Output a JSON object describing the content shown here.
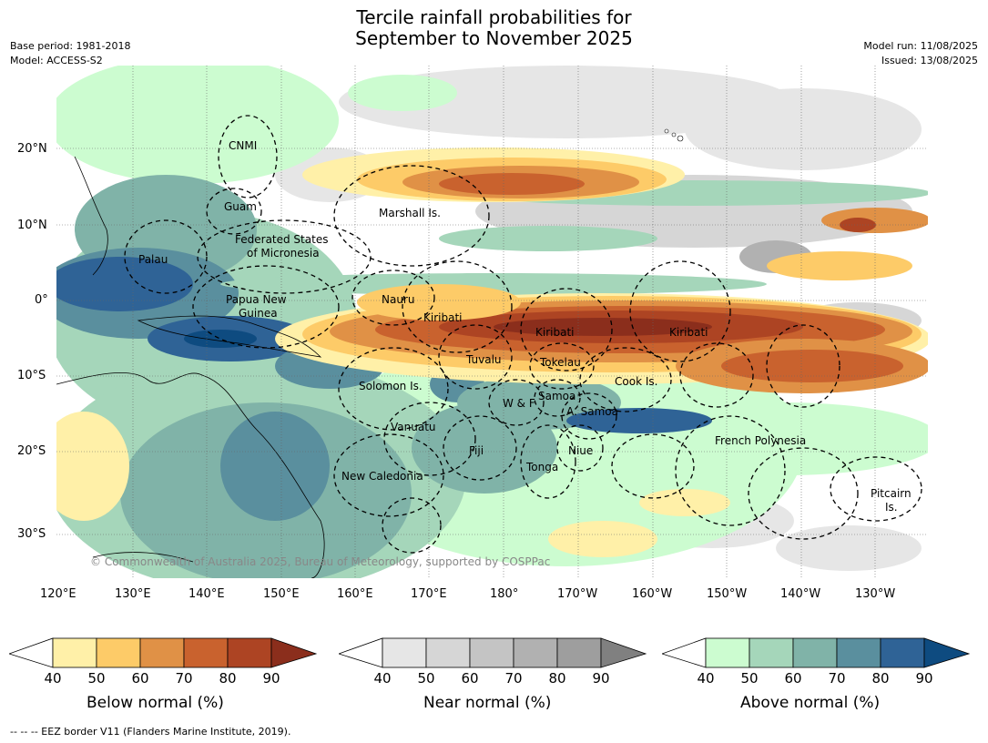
{
  "title": {
    "line1": "Tercile rainfall probabilities for",
    "line2": "September to November 2025"
  },
  "meta": {
    "base_period": "Base period: 1981-2018",
    "model": "Model: ACCESS-S2",
    "model_run": "Model run: 11/08/2025",
    "issued": "Issued: 13/08/2025"
  },
  "axes": {
    "lat_labels": [
      "20°N",
      "10°N",
      "0°",
      "10°S",
      "20°S",
      "30°S"
    ],
    "lon_labels": [
      "120°E",
      "130°E",
      "140°E",
      "150°E",
      "160°E",
      "170°E",
      "180°",
      "170°W",
      "160°W",
      "150°W",
      "140°W",
      "130°W"
    ]
  },
  "places": {
    "cnmi": "CNMI",
    "guam": "Guam",
    "marshall": "Marshall Is.",
    "fsm1": "Federated States",
    "fsm2": "of Micronesia",
    "palau": "Palau",
    "png1": "Papua New",
    "png2": "Guinea",
    "nauru": "Nauru",
    "kiribati_w": "Kiribati",
    "kiribati_c": "Kiribati",
    "kiribati_e": "Kiribati",
    "tuvalu": "Tuvalu",
    "tokelau": "Tokelau",
    "cook": "Cook Is.",
    "solomon": "Solomon Is.",
    "wf": "W & F",
    "samoa": "Samoa",
    "asamoa": "A. Samoa",
    "vanuatu": "Vanuatu",
    "fiji": "Fiji",
    "niue": "Niue",
    "tonga": "Tonga",
    "newcal": "New Caledonia",
    "frpoly": "French Polynesia",
    "pitcairn1": "Pitcairn",
    "pitcairn2": "Is."
  },
  "copyright": "© Commonwealth of Australia 2025, Bureau of Meteorology, supported by COSPPac",
  "colorbars": [
    {
      "title": "Below normal (%)",
      "ticks": [
        "40",
        "50",
        "60",
        "70",
        "80",
        "90"
      ],
      "colors": [
        "#fff0a8",
        "#fdcb68",
        "#e09146",
        "#c9622e",
        "#ad4423",
        "#8b2e1c"
      ]
    },
    {
      "title": "Near normal (%)",
      "ticks": [
        "40",
        "50",
        "60",
        "70",
        "80",
        "90"
      ],
      "colors": [
        "#e6e6e6",
        "#d6d6d6",
        "#c4c4c4",
        "#b1b1b1",
        "#9e9e9e",
        "#808080"
      ]
    },
    {
      "title": "Above normal (%)",
      "ticks": [
        "40",
        "50",
        "60",
        "70",
        "80",
        "90"
      ],
      "colors": [
        "#ccfcd0",
        "#a5d6ba",
        "#80b3a8",
        "#5a8f9e",
        "#2f6396",
        "#0e4b80"
      ]
    }
  ],
  "footer": "--  --  -- EEZ border V11 (Flanders Marine Institute, 2019)."
}
